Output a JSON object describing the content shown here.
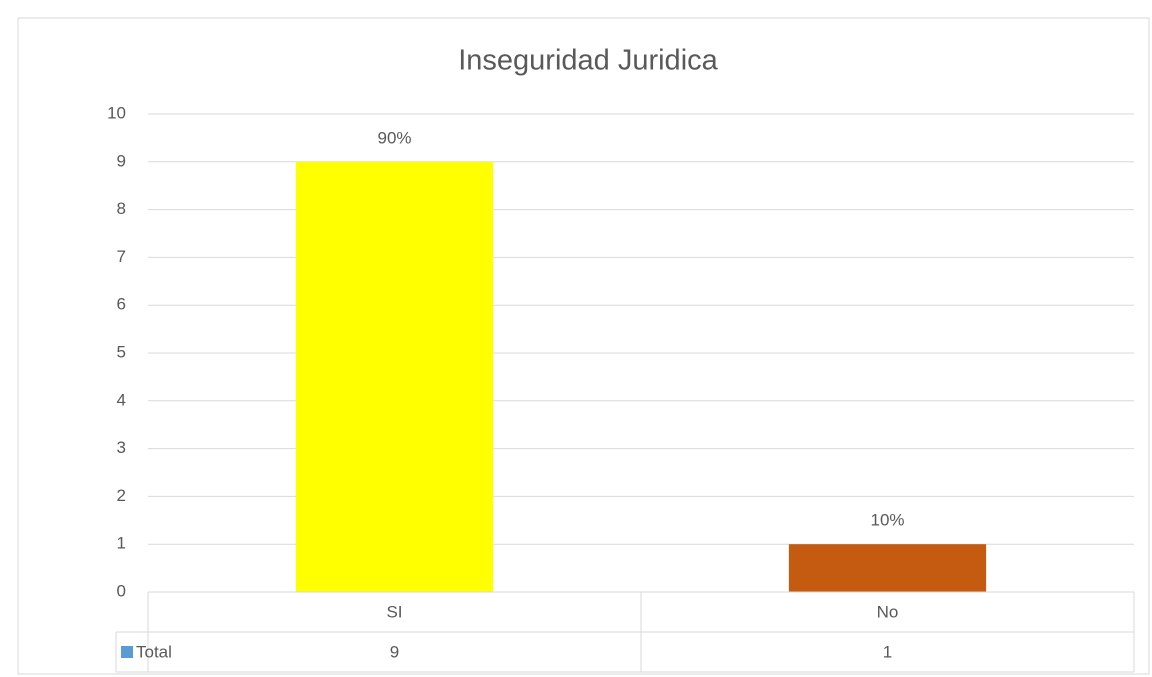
{
  "chart_data": {
    "type": "bar",
    "title": "Inseguridad Juridica",
    "categories": [
      "SI",
      "No"
    ],
    "series": [
      {
        "name": "Total",
        "color": "#5b9bd5",
        "point_colors": [
          "#ffff00",
          "#c55a11"
        ],
        "values": [
          9,
          1
        ],
        "value_labels": [
          "90%",
          "10%"
        ]
      }
    ],
    "ylim": [
      0,
      10
    ],
    "yticks": [
      0,
      1,
      2,
      3,
      4,
      5,
      6,
      7,
      8,
      9,
      10
    ],
    "grid": true,
    "data_table": true
  }
}
